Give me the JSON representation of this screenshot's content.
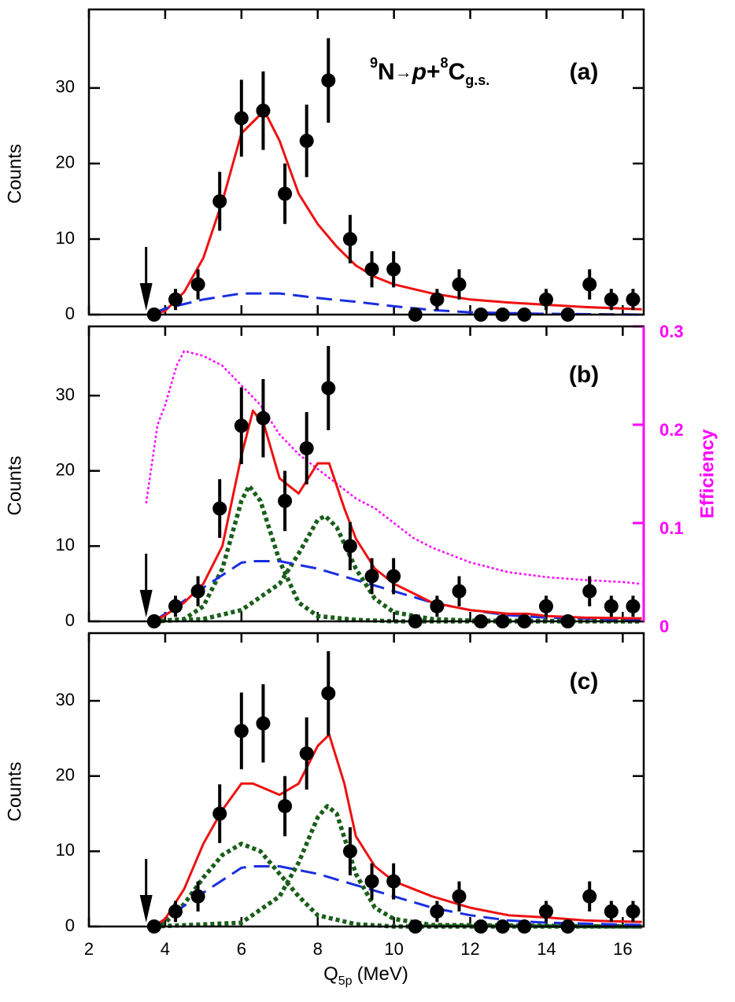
{
  "chart_data": [
    {
      "type": "scatter",
      "label": "(a)",
      "ylabel": "Counts",
      "annotation_parts": [
        "9",
        "N",
        "→",
        "p",
        "+",
        "8",
        "C",
        "g.s."
      ],
      "xlim": [
        2,
        16.55
      ],
      "xticks": [
        2,
        4,
        6,
        8,
        10,
        12,
        14,
        16
      ],
      "ylim": [
        0,
        40.4
      ],
      "yticks": [
        0,
        10,
        20,
        30
      ],
      "arrow_x": 3.5,
      "points": {
        "color": "#000000",
        "x": [
          3.71,
          4.27,
          4.86,
          5.43,
          6.0,
          6.57,
          7.14,
          7.71,
          8.28,
          8.85,
          9.42,
          9.99,
          10.56,
          11.13,
          11.71,
          12.28,
          12.85,
          13.42,
          13.99,
          14.56,
          15.13,
          15.7,
          16.27
        ],
        "values": [
          0,
          2,
          4,
          15,
          26,
          27,
          16,
          23,
          31,
          10,
          6,
          6,
          0,
          2,
          4,
          0,
          0,
          0,
          2,
          0,
          4,
          2,
          2
        ],
        "errors": [
          0,
          1.4,
          2,
          3.9,
          5.1,
          5.2,
          4,
          4.8,
          5.6,
          3.2,
          2.4,
          2.4,
          0,
          1.4,
          2,
          0,
          0,
          0,
          1.4,
          0,
          2,
          1.4,
          1.4
        ]
      },
      "series": [
        {
          "color": "#ee1111",
          "style": "solid",
          "x": [
            3.7,
            4,
            4.5,
            5,
            5.5,
            6,
            6.5,
            6.6,
            7,
            7.5,
            8,
            8.5,
            9,
            9.5,
            10,
            11,
            12,
            13,
            14,
            15,
            16,
            16.5
          ],
          "values": [
            0,
            0.5,
            3,
            7.5,
            15,
            24,
            26.5,
            27,
            23,
            16,
            12,
            9,
            6.5,
            5,
            4,
            2.8,
            2,
            1.6,
            1.3,
            1,
            0.8,
            0.7
          ]
        },
        {
          "color": "#1a2ee0",
          "style": "dashed",
          "x": [
            3.7,
            4,
            5,
            6,
            7,
            8,
            9,
            10,
            11,
            12,
            13,
            14,
            16.5
          ],
          "values": [
            0.2,
            0.8,
            2,
            2.8,
            2.8,
            2.2,
            1.7,
            1.1,
            0.6,
            0.3,
            0.2,
            0.1,
            0
          ]
        }
      ]
    },
    {
      "type": "scatter",
      "label": "(b)",
      "ylabel": "Counts",
      "y2label": "Efficiency",
      "y2color": "#ff00ff",
      "xlim": [
        2,
        16.55
      ],
      "xticks": [
        2,
        4,
        6,
        8,
        10,
        12,
        14,
        16
      ],
      "ylim": [
        0,
        39.2
      ],
      "yticks": [
        0,
        10,
        20,
        30
      ],
      "y2lim": [
        0,
        0.3
      ],
      "y2ticks": [
        0,
        0.1,
        0.2,
        0.3
      ],
      "arrow_x": 3.5,
      "points": {
        "color": "#000000",
        "x": [
          3.71,
          4.27,
          4.86,
          5.43,
          6.0,
          6.57,
          7.14,
          7.71,
          8.28,
          8.85,
          9.42,
          9.99,
          10.56,
          11.13,
          11.71,
          12.28,
          12.85,
          13.42,
          13.99,
          14.56,
          15.13,
          15.7,
          16.27
        ],
        "values": [
          0,
          2,
          4,
          15,
          26,
          27,
          16,
          23,
          31,
          10,
          6,
          6,
          0,
          2,
          4,
          0,
          0,
          0,
          2,
          0,
          4,
          2,
          2
        ],
        "errors": [
          0,
          1.4,
          2,
          3.9,
          5.1,
          5.2,
          4,
          4.8,
          5.6,
          3.2,
          2.4,
          2.4,
          0,
          1.4,
          2,
          0,
          0,
          0,
          1.4,
          0,
          2,
          1.4,
          1.4
        ]
      },
      "series": [
        {
          "color": "#ff00ff",
          "style": "thin-dotted",
          "axis": "y2",
          "x": [
            3.5,
            3.8,
            4,
            4.3,
            4.5,
            5,
            5.5,
            6,
            6.5,
            7,
            7.5,
            8,
            8.5,
            9,
            9.5,
            10,
            10.5,
            11,
            12,
            13,
            14,
            15,
            16,
            16.5
          ],
          "values": [
            0.12,
            0.2,
            0.22,
            0.26,
            0.275,
            0.27,
            0.26,
            0.24,
            0.22,
            0.19,
            0.17,
            0.155,
            0.14,
            0.125,
            0.115,
            0.1,
            0.085,
            0.075,
            0.06,
            0.05,
            0.045,
            0.042,
            0.04,
            0.038
          ]
        },
        {
          "color": "#1a5e1a",
          "style": "dotted",
          "x": [
            3.7,
            4.5,
            5,
            5.5,
            6,
            6.2,
            6.5,
            7,
            7.5,
            8,
            9,
            10,
            16.5
          ],
          "values": [
            0,
            0.3,
            2,
            7,
            16,
            18,
            16,
            8,
            2.5,
            0.7,
            0.2,
            0,
            0
          ]
        },
        {
          "color": "#1a5e1a",
          "style": "dotted",
          "x": [
            3.7,
            5,
            6,
            7,
            7.5,
            8,
            8.2,
            8.5,
            9,
            9.5,
            10,
            11,
            12,
            16.5
          ],
          "values": [
            0,
            0.3,
            1.5,
            5,
            9,
            13.5,
            14,
            12.5,
            7,
            3,
            1.2,
            0.3,
            0.1,
            0
          ]
        },
        {
          "color": "#1a2ee0",
          "style": "dashed",
          "x": [
            3.7,
            4,
            5,
            6,
            6.3,
            7,
            8,
            9,
            10,
            11,
            12,
            13,
            14,
            16.5
          ],
          "values": [
            0,
            1,
            4.5,
            7.8,
            8,
            8,
            7,
            5.5,
            4,
            2.5,
            1.5,
            0.8,
            0.5,
            0.2
          ]
        },
        {
          "color": "#ee1111",
          "style": "solid",
          "x": [
            3.7,
            4,
            4.5,
            5,
            5.5,
            6,
            6.3,
            6.6,
            7,
            7.5,
            8,
            8.3,
            8.7,
            9,
            9.5,
            10,
            11,
            12,
            13,
            13.5,
            14,
            15,
            16.5
          ],
          "values": [
            0,
            0.8,
            2.5,
            5,
            10,
            22,
            28,
            26,
            19,
            17,
            21,
            21,
            15,
            11,
            7,
            5,
            2.5,
            1.5,
            1,
            1,
            0.7,
            0.5,
            0.4
          ]
        }
      ]
    },
    {
      "type": "scatter",
      "label": "(c)",
      "ylabel": "Counts",
      "xlabel_parts": [
        "Q",
        "5p",
        "(MeV)"
      ],
      "xlim": [
        2,
        16.55
      ],
      "xticks": [
        2,
        4,
        6,
        8,
        10,
        12,
        14,
        16
      ],
      "ylim": [
        0,
        39
      ],
      "yticks": [
        0,
        10,
        20,
        30
      ],
      "arrow_x": 3.5,
      "points": {
        "color": "#000000",
        "x": [
          3.71,
          4.27,
          4.86,
          5.43,
          6.0,
          6.57,
          7.14,
          7.71,
          8.28,
          8.85,
          9.42,
          9.99,
          10.56,
          11.13,
          11.71,
          12.28,
          12.85,
          13.42,
          13.99,
          14.56,
          15.13,
          15.7,
          16.27
        ],
        "values": [
          0,
          2,
          4,
          15,
          26,
          27,
          16,
          23,
          31,
          10,
          6,
          6,
          0,
          2,
          4,
          0,
          0,
          0,
          2,
          0,
          4,
          2,
          2
        ],
        "errors": [
          0,
          1.4,
          2,
          3.9,
          5.1,
          5.2,
          4,
          4.8,
          5.6,
          3.2,
          2.4,
          2.4,
          0,
          1.4,
          2,
          0,
          0,
          0,
          1.4,
          0,
          2,
          1.4,
          1.4
        ]
      },
      "series": [
        {
          "color": "#1a5e1a",
          "style": "dotted",
          "x": [
            3.7,
            4,
            4.5,
            5,
            5.5,
            6,
            6.5,
            7,
            7.5,
            8,
            9,
            10,
            16.5
          ],
          "values": [
            0,
            0.5,
            3,
            6.5,
            9.5,
            11,
            10,
            7,
            4,
            1.5,
            0.3,
            0,
            0
          ]
        },
        {
          "color": "#1a5e1a",
          "style": "dotted",
          "x": [
            3.7,
            6,
            7,
            7.5,
            8,
            8.25,
            8.5,
            9,
            9.5,
            10,
            11,
            16.5
          ],
          "values": [
            0,
            0.5,
            4,
            8.5,
            14.5,
            16,
            15,
            7,
            2.5,
            1,
            0.2,
            0
          ]
        },
        {
          "color": "#1a2ee0",
          "style": "dashed",
          "x": [
            3.7,
            4,
            5,
            6,
            6.3,
            7,
            8,
            9,
            10,
            11,
            12,
            13,
            14,
            16.5
          ],
          "values": [
            0,
            1,
            4.5,
            7.8,
            8,
            8,
            7,
            5.5,
            4,
            2.5,
            1.5,
            0.8,
            0.5,
            0.2
          ]
        },
        {
          "color": "#ee1111",
          "style": "solid",
          "x": [
            3.7,
            4,
            4.5,
            5,
            5.5,
            6,
            6.3,
            7,
            7.5,
            8,
            8.3,
            8.7,
            9,
            9.5,
            10,
            11,
            12,
            13,
            14,
            15,
            16.5
          ],
          "values": [
            0,
            1,
            5,
            11,
            15.5,
            19,
            19,
            17.5,
            19,
            24,
            25.5,
            19,
            12,
            8,
            6,
            4,
            2.5,
            1.5,
            1.2,
            0.8,
            0.6
          ]
        }
      ]
    }
  ]
}
